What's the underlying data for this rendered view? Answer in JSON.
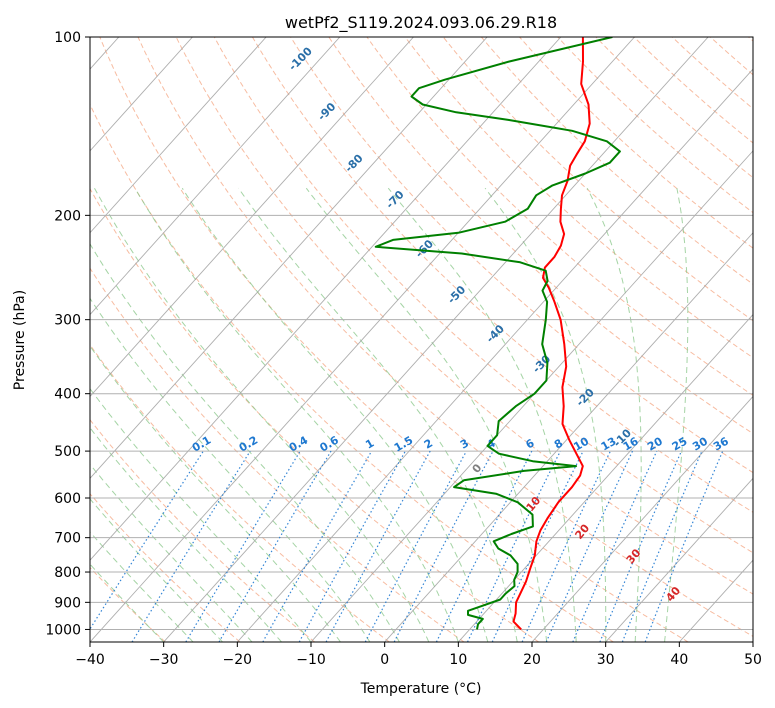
{
  "chart_data": {
    "type": "line",
    "subtype": "skew-t log-p",
    "title": "wetPf2_S119.2024.093.06.29.R18",
    "xlabel": "Temperature (°C)",
    "ylabel": "Pressure (hPa)",
    "xlim": [
      -40,
      50
    ],
    "ylim": [
      1050,
      100
    ],
    "y_scale": "log",
    "grid": true,
    "x_ticks": [
      -40,
      -30,
      -20,
      -10,
      0,
      10,
      20,
      30,
      40,
      50
    ],
    "y_ticks": [
      100,
      200,
      300,
      400,
      500,
      600,
      700,
      800,
      900,
      1000
    ],
    "x_tick_labels": [
      "−40",
      "−30",
      "−20",
      "−10",
      "0",
      "10",
      "20",
      "30",
      "40",
      "50"
    ],
    "y_tick_labels": [
      "100",
      "200",
      "300",
      "400",
      "500",
      "600",
      "700",
      "800",
      "900",
      "1000"
    ],
    "series": [
      {
        "color": "#ff0000",
        "points": [
          [
            1000,
            17.0
          ],
          [
            970,
            15.0
          ],
          [
            940,
            14.3
          ],
          [
            900,
            13.0
          ],
          [
            870,
            12.5
          ],
          [
            830,
            11.8
          ],
          [
            790,
            10.8
          ],
          [
            750,
            9.8
          ],
          [
            710,
            8.3
          ],
          [
            680,
            7.5
          ],
          [
            650,
            7.0
          ],
          [
            610,
            6.5
          ],
          [
            575,
            6.5
          ],
          [
            550,
            6.2
          ],
          [
            530,
            5.4
          ],
          [
            510,
            3.5
          ],
          [
            480,
            0.5
          ],
          [
            450,
            -2.5
          ],
          [
            420,
            -4.5
          ],
          [
            390,
            -7.0
          ],
          [
            360,
            -9.0
          ],
          [
            330,
            -12.0
          ],
          [
            300,
            -15.5
          ],
          [
            280,
            -18.5
          ],
          [
            265,
            -21.0
          ],
          [
            255,
            -23.0
          ],
          [
            245,
            -24.0
          ],
          [
            235,
            -24.0
          ],
          [
            225,
            -24.5
          ],
          [
            215,
            -25.5
          ],
          [
            205,
            -27.5
          ],
          [
            195,
            -29.0
          ],
          [
            185,
            -30.5
          ],
          [
            175,
            -31.5
          ],
          [
            165,
            -33.0
          ],
          [
            158,
            -33.5
          ],
          [
            150,
            -34.0
          ],
          [
            140,
            -35.5
          ],
          [
            130,
            -38.0
          ],
          [
            120,
            -41.5
          ],
          [
            110,
            -44.0
          ],
          [
            100,
            -47.0
          ]
        ]
      },
      {
        "color": "#008000",
        "points": [
          [
            1000,
            11.0
          ],
          [
            980,
            10.5
          ],
          [
            960,
            10.5
          ],
          [
            945,
            8.0
          ],
          [
            930,
            7.5
          ],
          [
            910,
            9.0
          ],
          [
            890,
            10.5
          ],
          [
            870,
            10.5
          ],
          [
            845,
            10.8
          ],
          [
            825,
            10.0
          ],
          [
            800,
            9.5
          ],
          [
            775,
            8.5
          ],
          [
            750,
            6.5
          ],
          [
            730,
            4.0
          ],
          [
            710,
            2.5
          ],
          [
            690,
            4.0
          ],
          [
            670,
            6.0
          ],
          [
            640,
            4.5
          ],
          [
            610,
            1.0
          ],
          [
            590,
            -3.0
          ],
          [
            575,
            -9.5
          ],
          [
            560,
            -9.0
          ],
          [
            540,
            -2.0
          ],
          [
            530,
            4.5
          ],
          [
            520,
            -2.0
          ],
          [
            505,
            -7.5
          ],
          [
            490,
            -10.0
          ],
          [
            470,
            -10.0
          ],
          [
            445,
            -11.5
          ],
          [
            420,
            -11.0
          ],
          [
            400,
            -10.0
          ],
          [
            380,
            -10.0
          ],
          [
            355,
            -12.0
          ],
          [
            330,
            -15.0
          ],
          [
            300,
            -17.5
          ],
          [
            280,
            -19.5
          ],
          [
            268,
            -21.5
          ],
          [
            258,
            -22.0
          ],
          [
            248,
            -23.5
          ],
          [
            240,
            -28.0
          ],
          [
            232,
            -37.0
          ],
          [
            226,
            -49.5
          ],
          [
            220,
            -48.0
          ],
          [
            214,
            -40.0
          ],
          [
            205,
            -35.0
          ],
          [
            195,
            -33.5
          ],
          [
            185,
            -34.0
          ],
          [
            178,
            -33.0
          ],
          [
            170,
            -30.0
          ],
          [
            163,
            -28.0
          ],
          [
            156,
            -28.0
          ],
          [
            150,
            -31.0
          ],
          [
            144,
            -37.0
          ],
          [
            138,
            -47.0
          ],
          [
            134,
            -55.0
          ],
          [
            130,
            -60.5
          ],
          [
            126,
            -63.0
          ],
          [
            122,
            -63.0
          ],
          [
            118,
            -60.5
          ],
          [
            110,
            -54.0
          ],
          [
            100,
            -43.0
          ]
        ]
      }
    ],
    "mixing_ratio_labels": [
      "0.1",
      "0.2",
      "0.4",
      "0.6",
      "1",
      "1.5",
      "2",
      "3",
      "4",
      "6",
      "8",
      "10",
      "13",
      "16",
      "20",
      "25",
      "30",
      "36"
    ],
    "dry_adiabat_labels": [
      "-100",
      "-90",
      "-80",
      "-70",
      "-60",
      "-50",
      "-40",
      "-30",
      "-20",
      "-10"
    ],
    "moist_adiabat_labels": [
      "0",
      "10",
      "20",
      "30",
      "40"
    ],
    "colors": {
      "temperature": "#ff0000",
      "dewpoint": "#008000",
      "isotherm": "#a0a0a0",
      "dry_adiabat": "#f4a582",
      "moist_adiabat": "#8fc98f",
      "mixing_ratio": "#1e78d0",
      "dry_label": "#2a6fa8",
      "moist_label": "#d62728"
    }
  }
}
